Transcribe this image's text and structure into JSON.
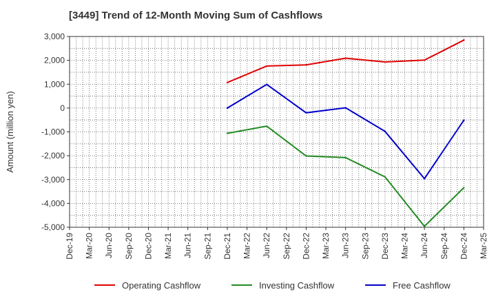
{
  "chart_data": {
    "type": "line",
    "title": "[3449]  Trend of 12-Month Moving Sum of Cashflows",
    "xlabel": "",
    "ylabel": "Amount (million yen)",
    "ylim": [
      -5000,
      3000
    ],
    "yticks": [
      3000,
      2000,
      1000,
      0,
      -1000,
      -2000,
      -3000,
      -4000,
      -5000
    ],
    "ytick_labels": [
      "3,000",
      "2,000",
      "1,000",
      "0",
      "-1,000",
      "-2,000",
      "-3,000",
      "-4,000",
      "-5,000"
    ],
    "categories": [
      "Dec-19",
      "Mar-20",
      "Jun-20",
      "Sep-20",
      "Dec-20",
      "Mar-21",
      "Jun-21",
      "Sep-21",
      "Dec-21",
      "Mar-22",
      "Jun-22",
      "Sep-22",
      "Dec-22",
      "Mar-23",
      "Jun-23",
      "Sep-23",
      "Dec-23",
      "Mar-24",
      "Jun-24",
      "Sep-24",
      "Dec-24",
      "Mar-25"
    ],
    "grid": true,
    "legend_position": "bottom",
    "series": [
      {
        "name": "Operating Cashflow",
        "color": "#e00000",
        "values": [
          null,
          null,
          null,
          null,
          null,
          null,
          null,
          null,
          1070,
          null,
          1760,
          null,
          1810,
          null,
          2090,
          null,
          1930,
          null,
          2010,
          null,
          2850,
          null
        ]
      },
      {
        "name": "Investing Cashflow",
        "color": "#228b22",
        "values": [
          null,
          null,
          null,
          null,
          null,
          null,
          null,
          null,
          -1060,
          null,
          -760,
          null,
          -2010,
          null,
          -2080,
          null,
          -2890,
          null,
          -4960,
          null,
          -3340,
          null
        ]
      },
      {
        "name": "Free Cashflow",
        "color": "#0000cc",
        "values": [
          null,
          null,
          null,
          null,
          null,
          null,
          null,
          null,
          0,
          null,
          990,
          null,
          -200,
          null,
          10,
          null,
          -980,
          null,
          -2960,
          null,
          -510,
          null
        ]
      }
    ]
  }
}
